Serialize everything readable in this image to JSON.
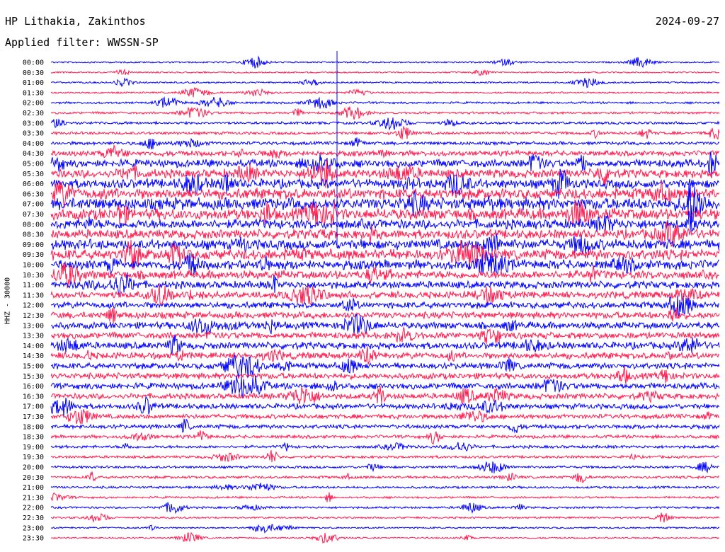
{
  "header": {
    "station": "HP Lithakia, Zakinthos",
    "date": "2024-09-27",
    "filter": "Applied filter: WWSSN-SP"
  },
  "chart_data": {
    "type": "line",
    "title": "HP Lithakia, Zakinthos",
    "ylabel": "HHZ - 30000",
    "row_labels": [
      "00:00",
      "00:30",
      "01:00",
      "01:30",
      "02:00",
      "02:30",
      "03:00",
      "03:30",
      "04:00",
      "04:30",
      "05:00",
      "05:30",
      "06:00",
      "06:30",
      "07:00",
      "07:30",
      "08:00",
      "08:30",
      "09:00",
      "09:30",
      "10:00",
      "10:30",
      "11:00",
      "11:30",
      "12:00",
      "12:30",
      "13:00",
      "13:30",
      "14:00",
      "14:30",
      "15:00",
      "15:30",
      "16:00",
      "16:30",
      "17:00",
      "17:30",
      "18:00",
      "18:30",
      "19:00",
      "19:30",
      "20:00",
      "20:30",
      "21:00",
      "21:30",
      "22:00",
      "22:30",
      "23:00",
      "23:30"
    ],
    "trace_colors": [
      "#0000ff",
      "#ff1a4f"
    ],
    "noise_level": [
      0.08,
      0.07,
      0.09,
      0.1,
      0.15,
      0.18,
      0.22,
      0.25,
      0.3,
      0.55,
      0.85,
      0.95,
      1.05,
      1.25,
      1.4,
      1.3,
      1.1,
      1.05,
      1.15,
      1.2,
      1.05,
      0.95,
      0.8,
      0.75,
      0.7,
      0.72,
      0.75,
      0.7,
      0.75,
      0.7,
      0.65,
      0.65,
      0.65,
      0.6,
      0.55,
      0.45,
      0.4,
      0.3,
      0.25,
      0.22,
      0.2,
      0.22,
      0.18,
      0.15,
      0.15,
      0.12,
      0.1,
      0.08
    ]
  }
}
